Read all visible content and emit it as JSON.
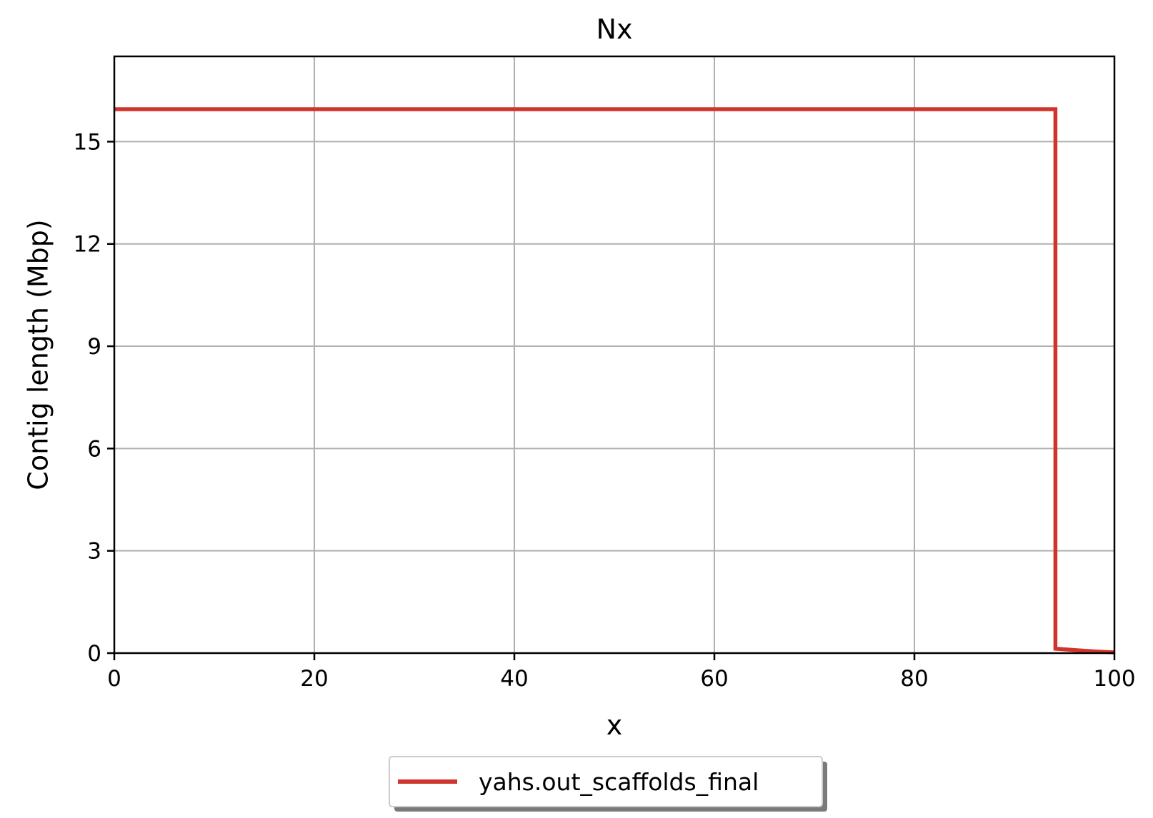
{
  "chart_data": {
    "type": "line",
    "title": "Nx",
    "xlabel": "x",
    "ylabel": "Contig length (Mbp)",
    "xlim": [
      0,
      100
    ],
    "ylim": [
      0,
      17.5
    ],
    "xticks": [
      0,
      20,
      40,
      60,
      80,
      100
    ],
    "yticks": [
      0,
      3,
      6,
      9,
      12,
      15
    ],
    "grid": true,
    "legend_position": "bottom-center",
    "series": [
      {
        "name": "yahs.out_scaffolds_final",
        "color": "#d0342c",
        "x": [
          0,
          94.1,
          94.1,
          96,
          98,
          100
        ],
        "y": [
          15.95,
          15.95,
          0.13,
          0.09,
          0.05,
          0.02
        ]
      }
    ]
  }
}
